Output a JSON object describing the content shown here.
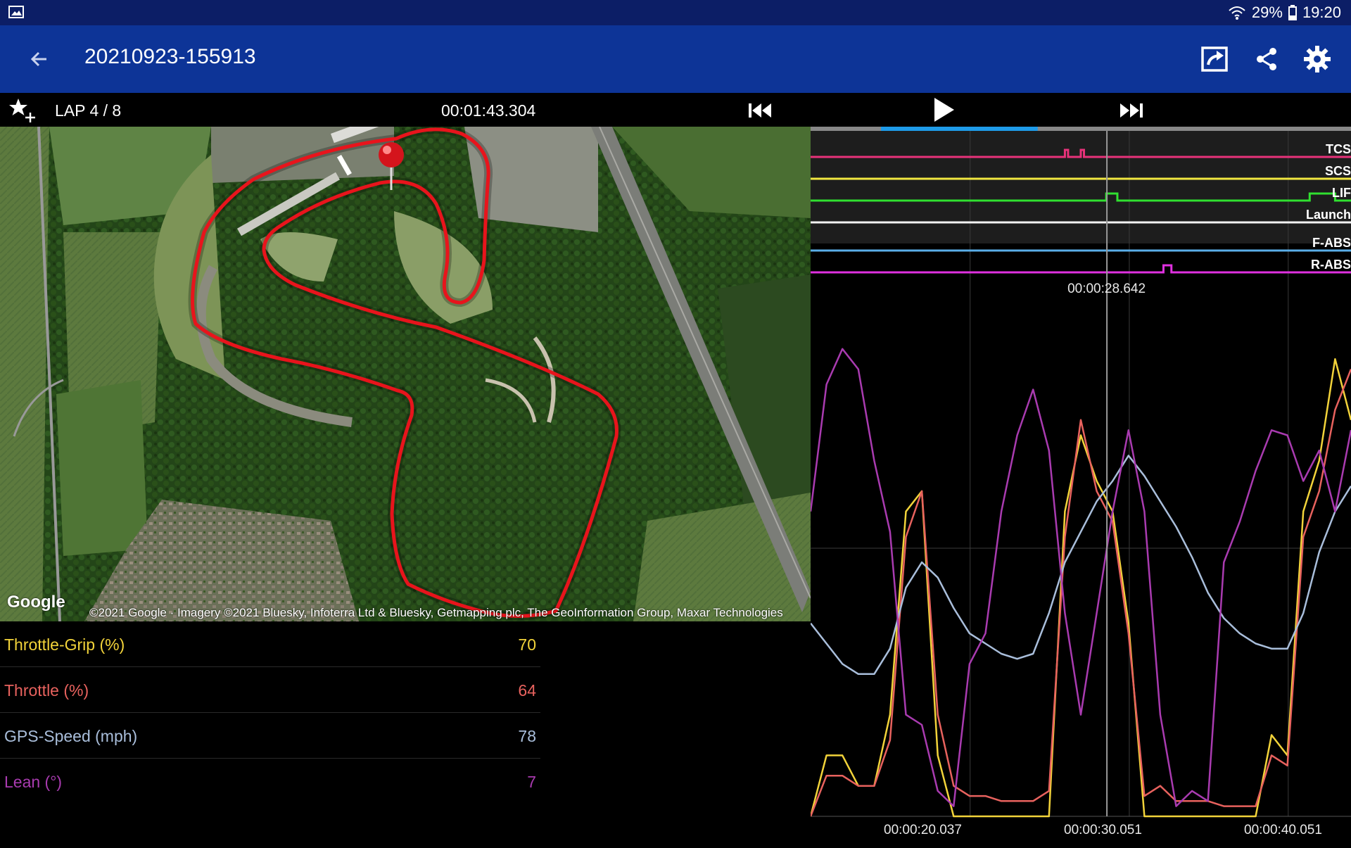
{
  "status_bar": {
    "battery": "29%",
    "time": "19:20",
    "left_icon": "gallery-icon",
    "right_icons": [
      "wifi-icon",
      "battery-icon"
    ]
  },
  "app_bar": {
    "title": "20210923-155913",
    "back_icon": "arrow-back-icon",
    "actions": [
      "export-icon",
      "share-icon",
      "settings-icon"
    ]
  },
  "lap_bar": {
    "lap": "LAP 4 / 8",
    "lap_time": "00:01:43.304",
    "icons": [
      "star-add-icon",
      "skip-previous-icon",
      "play-icon",
      "skip-next-icon"
    ],
    "playback_progress": 0.29
  },
  "map": {
    "google_logo": "Google",
    "copyright": "©2021 Google · Imagery ©2021 Bluesky, Infoterra Ltd & Bluesky, Getmapping plc, The GeoInformation Group, Maxar Technologies",
    "track_color": "#e8141c",
    "marker_icon": "map-pin-icon"
  },
  "values": [
    {
      "label": "Throttle-Grip (%)",
      "value": "70",
      "color": "#f2d33a"
    },
    {
      "label": "Throttle (%)",
      "value": "64",
      "color": "#e8625e"
    },
    {
      "label": "GPS-Speed (mph)",
      "value": "78",
      "color": "#a9bedb"
    },
    {
      "label": "Lean (°)",
      "value": "7",
      "color": "#a93bb0"
    }
  ],
  "chart_data": {
    "type": "line",
    "cursor_time": "00:00:28.642",
    "x_ticks": [
      "00:00:20.037",
      "00:00:30.051",
      "00:00:40.051"
    ],
    "flags": [
      {
        "name": "TCS",
        "color": "#e8327a",
        "pulses": [
          [
            26.0,
            26.2
          ],
          [
            27.0,
            27.2
          ]
        ]
      },
      {
        "name": "SCS",
        "color": "#f1e740",
        "pulses": []
      },
      {
        "name": "LIF",
        "color": "#30e030",
        "pulses": [
          [
            28.6,
            29.3
          ],
          [
            41.4,
            43.0
          ]
        ]
      },
      {
        "name": "Launch",
        "color": "#f2f2f2",
        "pulses": []
      },
      {
        "name": "F-ABS",
        "color": "#5aaee8",
        "pulses": []
      },
      {
        "name": "R-ABS",
        "color": "#e030e0",
        "pulses": [
          [
            32.2,
            32.7
          ]
        ]
      }
    ],
    "x_range": [
      10.0,
      44.0
    ],
    "y_range": [
      0,
      100
    ],
    "series": [
      {
        "name": "Throttle-Grip (%)",
        "color": "#f2d33a",
        "x": [
          10,
          11,
          12,
          13,
          14,
          15,
          16,
          17,
          18,
          19,
          20,
          21,
          22,
          23,
          24,
          25,
          26,
          27,
          28,
          29,
          30,
          31,
          32,
          33,
          34,
          35,
          36,
          37,
          38,
          39,
          40,
          41,
          42,
          43,
          44
        ],
        "y": [
          0,
          12,
          12,
          6,
          6,
          20,
          60,
          64,
          12,
          0,
          0,
          0,
          0,
          0,
          0,
          0,
          60,
          75,
          66,
          60,
          38,
          0,
          0,
          0,
          0,
          0,
          0,
          0,
          0,
          16,
          12,
          60,
          70,
          90,
          78
        ]
      },
      {
        "name": "Throttle (%)",
        "color": "#e8625e",
        "x": [
          10,
          11,
          12,
          13,
          14,
          15,
          16,
          17,
          18,
          19,
          20,
          21,
          22,
          23,
          24,
          25,
          26,
          27,
          28,
          29,
          30,
          31,
          32,
          33,
          34,
          35,
          36,
          37,
          38,
          39,
          40,
          41,
          42,
          43,
          44
        ],
        "y": [
          0,
          8,
          8,
          6,
          6,
          15,
          55,
          64,
          20,
          6,
          4,
          4,
          3,
          3,
          3,
          5,
          55,
          78,
          64,
          58,
          36,
          4,
          6,
          3,
          3,
          3,
          2,
          2,
          2,
          12,
          10,
          55,
          64,
          80,
          88
        ]
      },
      {
        "name": "GPS-Speed (mph)",
        "color": "#a9bedb",
        "x": [
          10,
          11,
          12,
          13,
          14,
          15,
          16,
          17,
          18,
          19,
          20,
          21,
          22,
          23,
          24,
          25,
          26,
          27,
          28,
          29,
          30,
          31,
          32,
          33,
          34,
          35,
          36,
          37,
          38,
          39,
          40,
          41,
          42,
          43,
          44
        ],
        "y": [
          38,
          34,
          30,
          28,
          28,
          33,
          45,
          50,
          47,
          41,
          36,
          34,
          32,
          31,
          32,
          40,
          50,
          56,
          62,
          66,
          71,
          67,
          62,
          57,
          51,
          44,
          39,
          36,
          34,
          33,
          33,
          40,
          52,
          60,
          65
        ]
      },
      {
        "name": "Lean (°)",
        "color": "#a93bb0",
        "x": [
          10,
          11,
          12,
          13,
          14,
          15,
          16,
          17,
          18,
          19,
          20,
          21,
          22,
          23,
          24,
          25,
          26,
          27,
          28,
          29,
          30,
          31,
          32,
          33,
          34,
          35,
          36,
          37,
          38,
          39,
          40,
          41,
          42,
          43,
          44
        ],
        "y": [
          60,
          85,
          92,
          88,
          70,
          56,
          20,
          18,
          5,
          2,
          30,
          36,
          60,
          75,
          84,
          72,
          40,
          20,
          40,
          60,
          76,
          60,
          20,
          2,
          5,
          3,
          50,
          58,
          68,
          76,
          75,
          66,
          72,
          60,
          76
        ]
      }
    ]
  }
}
